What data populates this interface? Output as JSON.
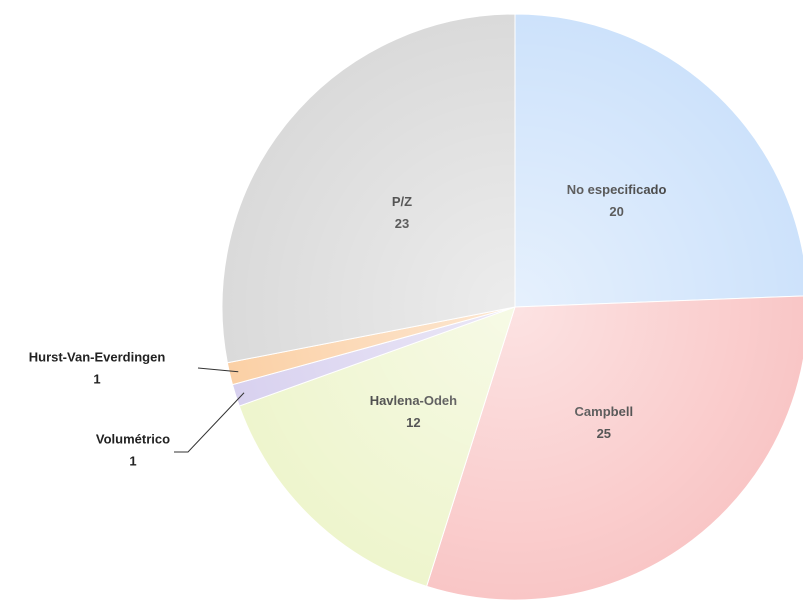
{
  "chart_data": {
    "type": "pie",
    "categories": [
      "No especificado",
      "Campbell",
      "Havlena-Odeh",
      "Volumétrico",
      "Hurst-Van-Everdingen",
      "P/Z"
    ],
    "values": [
      20,
      25,
      12,
      1,
      1,
      23
    ],
    "colors": [
      "#cde2fb",
      "#f9c6c6",
      "#eef5cd",
      "#d8d1ef",
      "#fbd0a5",
      "#dadada"
    ]
  }
}
